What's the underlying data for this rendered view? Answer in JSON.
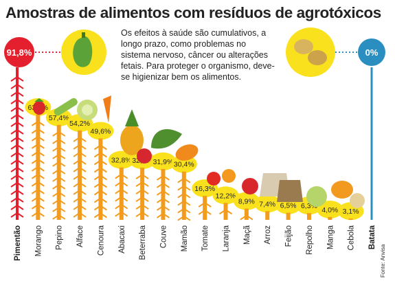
{
  "title": "Amostras de alimentos com resíduos de agrotóxicos",
  "description": "Os efeitos à saúde são cumulativos, a longo prazo, como problemas no sistema nervoso, câncer ou alterações fetais. Para proteger o organismo, deve-se higienizar bem os alimentos.",
  "source": "Fonte: Anvisa",
  "chart_data": {
    "type": "bar",
    "categories": [
      "Pimentão",
      "Morango",
      "Pepino",
      "Alface",
      "Cenoura",
      "Abacaxi",
      "Beterraba",
      "Couve",
      "Mamão",
      "Tomate",
      "Laranja",
      "Maçã",
      "Arroz",
      "Feijão",
      "Repolho",
      "Manga",
      "Cebola",
      "Batata"
    ],
    "values": [
      91.8,
      63.4,
      57.4,
      54.2,
      49.6,
      32.8,
      32.6,
      31.9,
      30.4,
      16.3,
      12.2,
      8.9,
      7.4,
      6.5,
      6.3,
      4.0,
      3.1,
      0
    ],
    "value_labels": [
      "91,8%",
      "63,4%",
      "57,4%",
      "54,2%",
      "49,6%",
      "32,8%",
      "32,6%",
      "31,9%",
      "30,4%",
      "16,3%",
      "12,2%",
      "8,9%",
      "7,4%",
      "6,5%",
      "6,3%",
      "4,0%",
      "3,1%",
      "0%"
    ],
    "unit": "%",
    "ylim": [
      0,
      100
    ],
    "colors": {
      "max": "#e4202e",
      "min": "#2a8fc0",
      "bar": "#f29b1c",
      "bubble": "#f9e11e",
      "arrow": "#f29b1c"
    }
  }
}
